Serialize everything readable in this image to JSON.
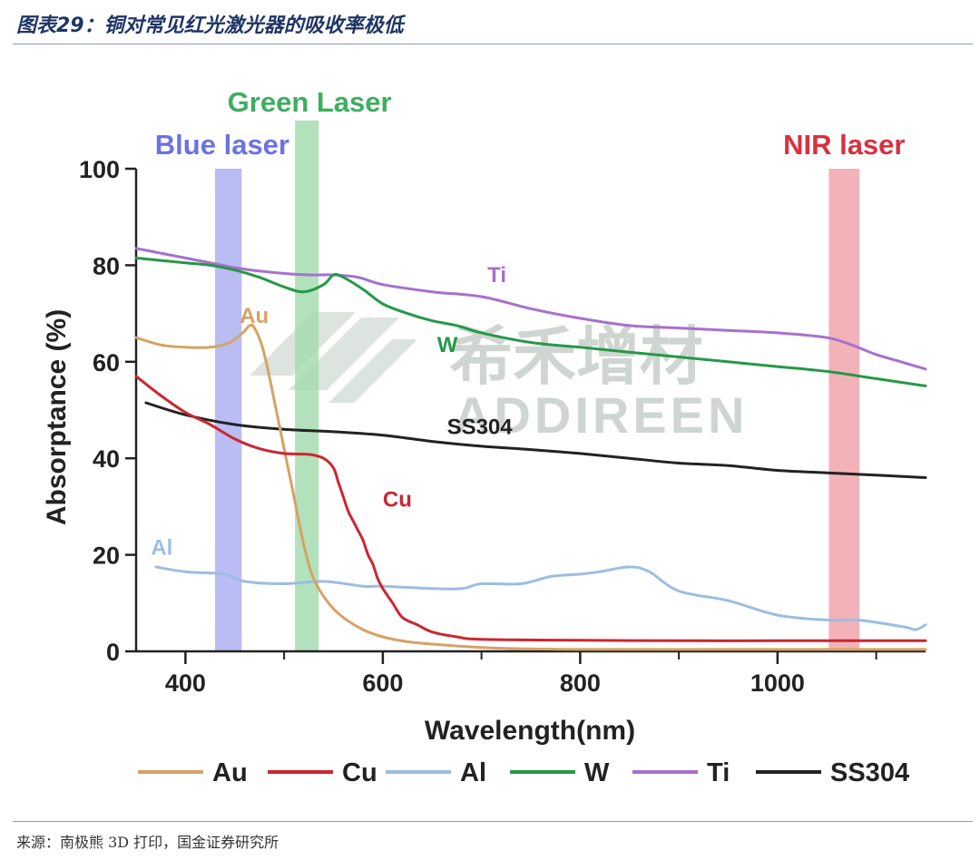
{
  "figure": {
    "title": "图表29：铜对常见红光激光器的吸收率极低",
    "source": "来源：南极熊 3D 打印，国金证券研究所"
  },
  "watermark": {
    "text_cn": "希禾增材",
    "text_en": "ADDIREEN"
  },
  "chart_data": {
    "type": "line",
    "xlabel": "Wavelength(nm)",
    "ylabel": "Absorptance (%)",
    "xlim": [
      350,
      1150
    ],
    "ylim": [
      0,
      100
    ],
    "xticks": [
      400,
      600,
      800,
      1000
    ],
    "xminor": [
      500,
      700,
      900,
      1100
    ],
    "yticks": [
      0,
      20,
      40,
      60,
      80,
      100
    ],
    "grid": false,
    "legend": "bottom",
    "bands": [
      {
        "name": "Blue laser",
        "x": [
          430,
          457
        ],
        "color": "#aeb2f2",
        "label_color": "#6b72e3"
      },
      {
        "name": "Green Laser",
        "x": [
          511,
          535
        ],
        "color": "#a4dcb0",
        "label_color": "#3dae60"
      },
      {
        "name": "NIR laser",
        "x": [
          1052,
          1083
        ],
        "color": "#f1a5ab",
        "label_color": "#d9303e"
      }
    ],
    "series": [
      {
        "name": "Au",
        "color": "#d6a264",
        "label_at": [
          455,
          68
        ],
        "x": [
          350,
          375,
          400,
          425,
          445,
          458,
          465,
          470,
          478,
          485,
          492,
          500,
          510,
          520,
          530,
          545,
          560,
          580,
          600,
          625,
          650,
          700,
          750,
          800,
          900,
          1000,
          1100,
          1150
        ],
        "y": [
          65,
          63.5,
          63,
          63,
          64,
          66,
          67.5,
          67,
          63,
          57,
          50,
          42,
          32,
          22,
          15,
          10,
          7,
          4.5,
          3,
          2,
          1.5,
          0.8,
          0.5,
          0.4,
          0.4,
          0.4,
          0.4,
          0.4
        ]
      },
      {
        "name": "Cu",
        "color": "#cc2630",
        "label_at": [
          600,
          30
        ],
        "x": [
          350,
          375,
          400,
          425,
          450,
          475,
          500,
          525,
          540,
          550,
          555,
          560,
          565,
          570,
          575,
          580,
          585,
          590,
          595,
          600,
          610,
          620,
          635,
          650,
          675,
          700,
          800,
          900,
          1000,
          1100,
          1150
        ],
        "y": [
          57,
          53,
          49.5,
          47,
          44,
          42,
          41,
          40.8,
          40,
          38,
          35,
          32,
          29,
          27,
          25,
          23,
          20,
          18,
          15,
          13,
          10,
          7,
          5.5,
          4,
          3,
          2.5,
          2.3,
          2.2,
          2.2,
          2.2,
          2.2
        ]
      },
      {
        "name": "Al",
        "color": "#9dbde2",
        "label_at": [
          365,
          20
        ],
        "x": [
          370,
          400,
          440,
          460,
          500,
          540,
          580,
          600,
          650,
          680,
          700,
          740,
          770,
          800,
          820,
          850,
          870,
          900,
          950,
          1000,
          1050,
          1080,
          1100,
          1130,
          1140,
          1150
        ],
        "y": [
          17.5,
          16.5,
          16,
          14.5,
          14,
          14.5,
          13.5,
          13.5,
          13,
          13,
          14,
          14,
          15.5,
          16,
          16.5,
          17.5,
          16.5,
          12.5,
          10.5,
          7.5,
          6.5,
          6.5,
          6,
          5,
          4.5,
          5.5
        ]
      },
      {
        "name": "W",
        "color": "#259848",
        "label_at": [
          655,
          62
        ],
        "x": [
          350,
          375,
          400,
          425,
          450,
          475,
          500,
          520,
          540,
          550,
          560,
          580,
          600,
          625,
          650,
          675,
          700,
          750,
          800,
          850,
          900,
          950,
          1000,
          1050,
          1100,
          1150
        ],
        "y": [
          81.5,
          81,
          80.5,
          80,
          79,
          77.5,
          75.5,
          74.5,
          76,
          78,
          77.5,
          75,
          72,
          70,
          68.5,
          67.5,
          66,
          64,
          63,
          62,
          61,
          60,
          59,
          58,
          56.5,
          55
        ]
      },
      {
        "name": "Ti",
        "color": "#a770cf",
        "label_at": [
          706,
          76.5
        ],
        "x": [
          350,
          375,
          400,
          425,
          450,
          475,
          500,
          525,
          550,
          575,
          600,
          650,
          700,
          750,
          800,
          850,
          900,
          950,
          1000,
          1050,
          1075,
          1100,
          1125,
          1150
        ],
        "y": [
          83.5,
          82.5,
          81.5,
          80.5,
          79.5,
          78.8,
          78.3,
          78,
          78,
          77.5,
          76,
          74.5,
          73.5,
          71,
          69,
          67.5,
          67,
          66.5,
          66,
          65,
          63.5,
          61.5,
          60,
          58.5
        ]
      },
      {
        "name": "SS304",
        "color": "#222222",
        "label_at": [
          665,
          45
        ],
        "x": [
          360,
          400,
          450,
          500,
          550,
          600,
          650,
          700,
          750,
          800,
          850,
          900,
          950,
          1000,
          1050,
          1100,
          1150
        ],
        "y": [
          51.5,
          49,
          47,
          46,
          45.5,
          44.8,
          43.5,
          42.5,
          41.8,
          41,
          40,
          39,
          38.5,
          37.5,
          37,
          36.5,
          36
        ]
      }
    ]
  }
}
